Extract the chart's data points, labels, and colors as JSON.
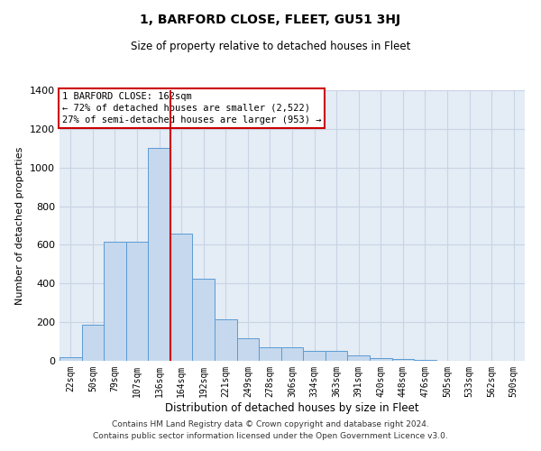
{
  "title": "1, BARFORD CLOSE, FLEET, GU51 3HJ",
  "subtitle": "Size of property relative to detached houses in Fleet",
  "xlabel": "Distribution of detached houses by size in Fleet",
  "ylabel": "Number of detached properties",
  "footer_line1": "Contains HM Land Registry data © Crown copyright and database right 2024.",
  "footer_line2": "Contains public sector information licensed under the Open Government Licence v3.0.",
  "annotation_line1": "1 BARFORD CLOSE: 162sqm",
  "annotation_line2": "← 72% of detached houses are smaller (2,522)",
  "annotation_line3": "27% of semi-detached houses are larger (953) →",
  "bar_categories": [
    "22sqm",
    "50sqm",
    "79sqm",
    "107sqm",
    "136sqm",
    "164sqm",
    "192sqm",
    "221sqm",
    "249sqm",
    "278sqm",
    "306sqm",
    "334sqm",
    "363sqm",
    "391sqm",
    "420sqm",
    "448sqm",
    "476sqm",
    "505sqm",
    "533sqm",
    "562sqm",
    "590sqm"
  ],
  "bar_values": [
    18,
    185,
    615,
    615,
    1100,
    660,
    425,
    215,
    115,
    70,
    70,
    50,
    50,
    28,
    12,
    8,
    4,
    2,
    1,
    1,
    0
  ],
  "bar_color": "#c5d8ed",
  "bar_edge_color": "#5b9bd5",
  "red_line_x": 4.5,
  "ylim": [
    0,
    1400
  ],
  "yticks": [
    0,
    200,
    400,
    600,
    800,
    1000,
    1200,
    1400
  ],
  "grid_color": "#c8d4e4",
  "background_color": "#e4ecf5",
  "annotation_box_color": "#ffffff",
  "annotation_box_edge": "#cc0000",
  "red_line_color": "#cc0000",
  "title_fontsize": 10,
  "subtitle_fontsize": 8.5,
  "ylabel_fontsize": 8,
  "xlabel_fontsize": 8.5,
  "ytick_fontsize": 8,
  "xtick_fontsize": 7,
  "annotation_fontsize": 7.5,
  "footer_fontsize": 6.5
}
